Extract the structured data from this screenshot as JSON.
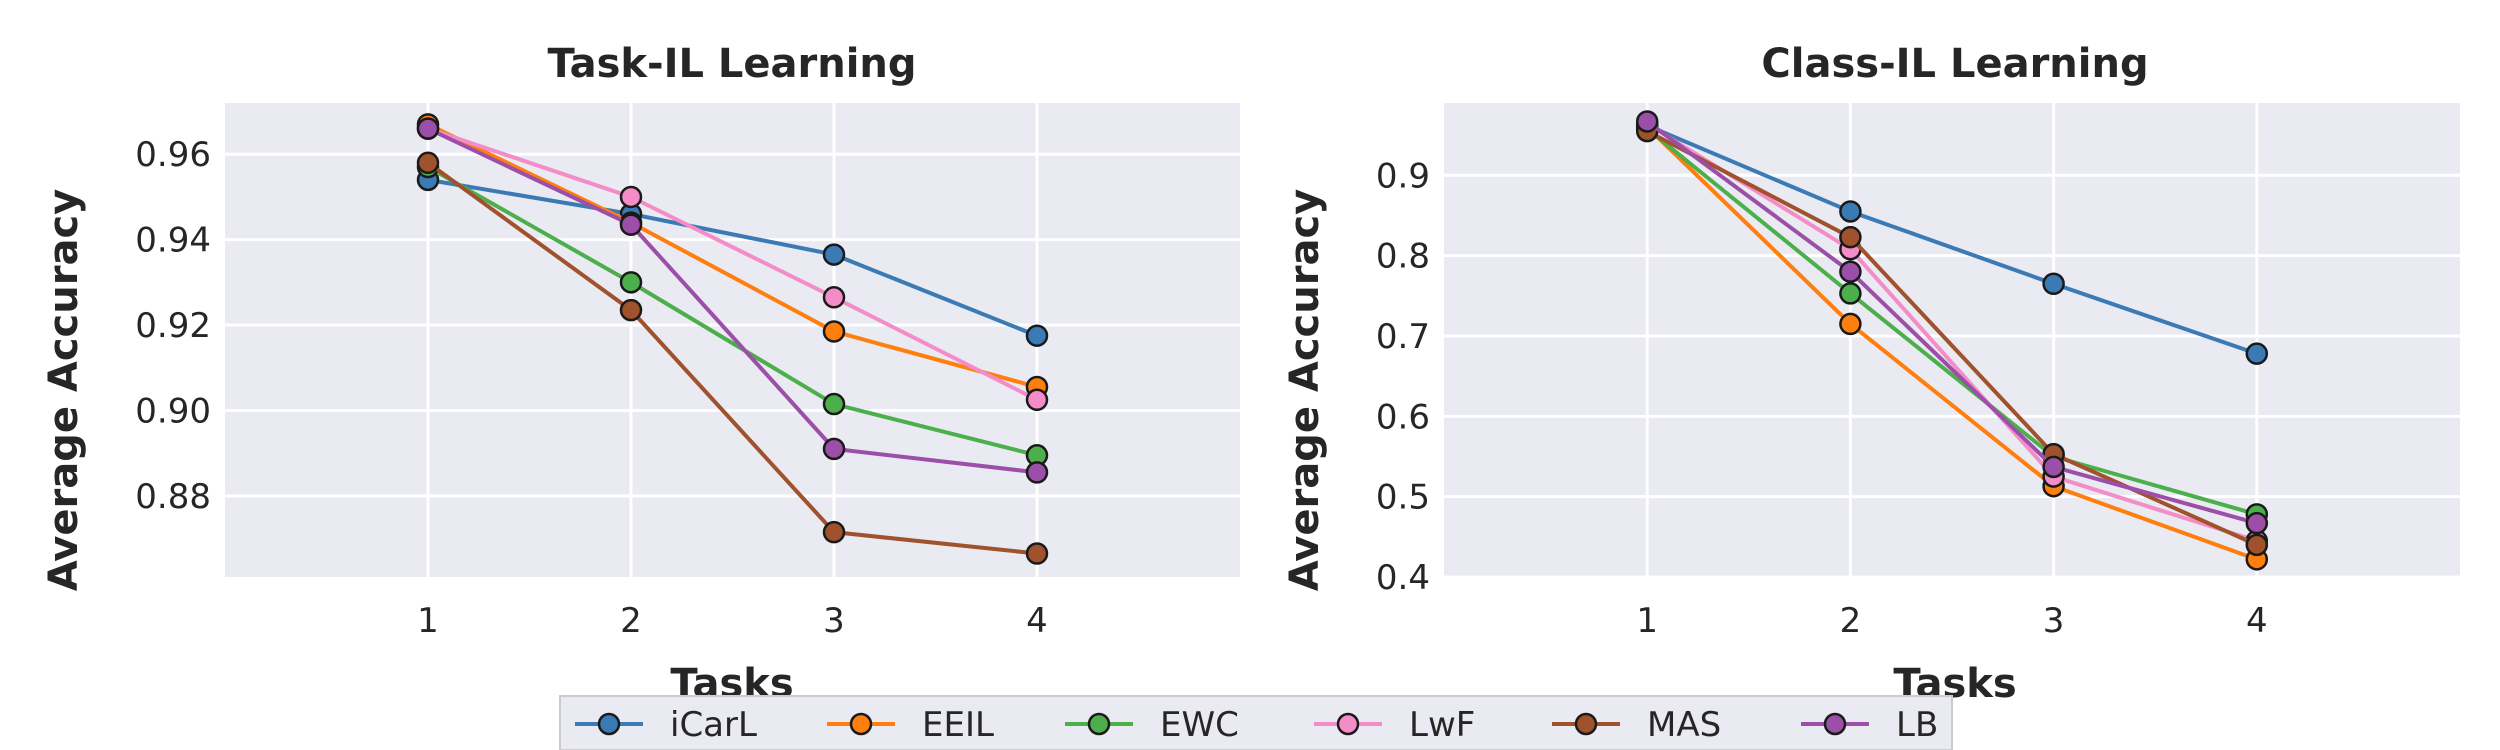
{
  "chart_data": [
    {
      "type": "line",
      "title": "Task-IL Learning",
      "xlabel": "Tasks",
      "ylabel": "Average Accuracy",
      "x": [
        1,
        2,
        3,
        4
      ],
      "xlim": [
        0,
        5
      ],
      "xticks": [
        "1",
        "2",
        "3",
        "4"
      ],
      "ylim": [
        0.861,
        0.972
      ],
      "yticks": [
        "0.88",
        "0.90",
        "0.92",
        "0.94",
        "0.96"
      ],
      "grid": true,
      "series": [
        {
          "name": "iCarL",
          "color": "#3a7ab5",
          "values": [
            0.954,
            0.946,
            0.9365,
            0.9175
          ]
        },
        {
          "name": "EEIL",
          "color": "#ff7f0e",
          "values": [
            0.967,
            0.944,
            0.9185,
            0.9055
          ]
        },
        {
          "name": "EWC",
          "color": "#4caf4c",
          "values": [
            0.957,
            0.93,
            0.9015,
            0.8895
          ]
        },
        {
          "name": "LwF",
          "color": "#f48cc8",
          "values": [
            0.966,
            0.95,
            0.9265,
            0.9025
          ]
        },
        {
          "name": "MAS",
          "color": "#a0522d",
          "values": [
            0.958,
            0.9235,
            0.8715,
            0.8665
          ]
        },
        {
          "name": "LB",
          "color": "#9c4fa8",
          "values": [
            0.966,
            0.9435,
            0.891,
            0.8855
          ]
        }
      ]
    },
    {
      "type": "line",
      "title": "Class-IL Learning",
      "xlabel": "Tasks",
      "ylabel": "Average Accuracy",
      "x": [
        1,
        2,
        3,
        4
      ],
      "xlim": [
        0,
        5
      ],
      "xticks": [
        "1",
        "2",
        "3",
        "4"
      ],
      "ylim": [
        0.4,
        0.99
      ],
      "yticks": [
        "0.4",
        "0.5",
        "0.6",
        "0.7",
        "0.8",
        "0.9"
      ],
      "grid": true,
      "series": [
        {
          "name": "iCarL",
          "color": "#3a7ab5",
          "values": [
            0.962,
            0.855,
            0.765,
            0.678
          ]
        },
        {
          "name": "EEIL",
          "color": "#ff7f0e",
          "values": [
            0.96,
            0.715,
            0.513,
            0.422
          ]
        },
        {
          "name": "EWC",
          "color": "#4caf4c",
          "values": [
            0.958,
            0.753,
            0.55,
            0.478
          ]
        },
        {
          "name": "LwF",
          "color": "#f48cc8",
          "values": [
            0.964,
            0.808,
            0.525,
            0.445
          ]
        },
        {
          "name": "MAS",
          "color": "#a0522d",
          "values": [
            0.955,
            0.823,
            0.553,
            0.44
          ]
        },
        {
          "name": "LB",
          "color": "#9c4fa8",
          "values": [
            0.967,
            0.78,
            0.537,
            0.467
          ]
        }
      ]
    }
  ],
  "legend": {
    "placement": "bottom-center",
    "entries": [
      "iCarL",
      "EEIL",
      "EWC",
      "LwF",
      "MAS",
      "LB"
    ]
  }
}
